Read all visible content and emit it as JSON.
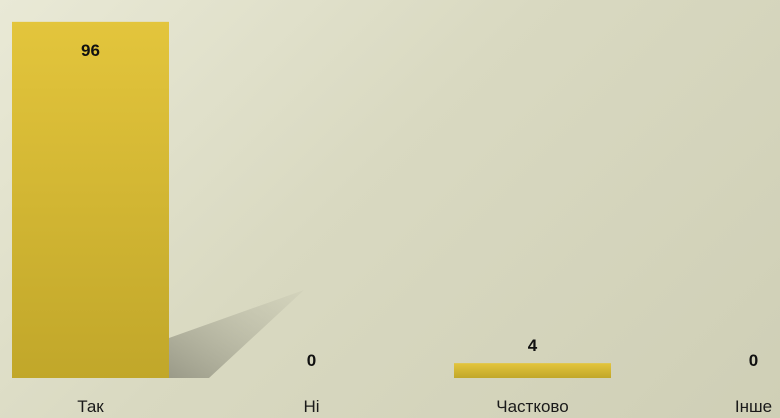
{
  "chart_data": {
    "type": "bar",
    "categories": [
      "Так",
      "Ні",
      "Частково",
      "Інше"
    ],
    "values": [
      96,
      0,
      4,
      0
    ],
    "title": "",
    "xlabel": "",
    "ylabel": "",
    "ylim": [
      0,
      100
    ],
    "grid": false,
    "data_labels": true,
    "colors": {
      "bar_top": "#e3c53c",
      "bar_bottom": "#c1a72a",
      "shadow": "#9a9a88"
    }
  }
}
